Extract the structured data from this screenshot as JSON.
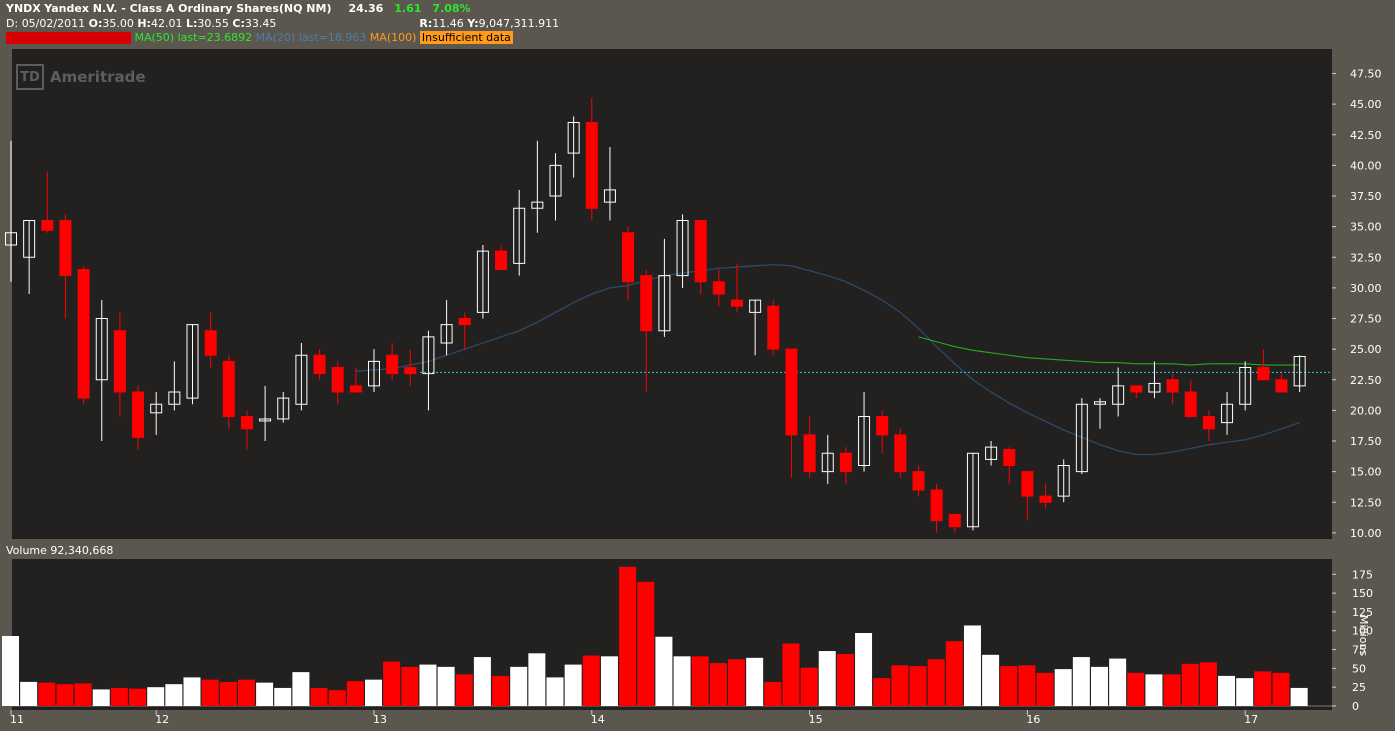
{
  "header": {
    "symbol": "YNDX",
    "name": "Yandex N.V. - Class A Ordinary Shares(NQ NM)",
    "last": "24.36",
    "change": "1.61",
    "change_pct": "7.08%",
    "date_label": "D:",
    "date": "05/02/2011",
    "open_label": "O:",
    "open": "35.00",
    "high_label": "H:",
    "high": "42.01",
    "low_label": "L:",
    "low": "30.55",
    "close_label": "C:",
    "close": "33.45",
    "range_label": "R:",
    "range": "11.46",
    "vol_label": "Y:",
    "volume": "9,047,311.911",
    "study1_label": "MA(50)",
    "study1_last": "last=23.6892",
    "study2_label": "MA(20)",
    "study2_last": "last=18.963",
    "study3_label": "MA(100)",
    "study3_note": "Insufficient data"
  },
  "logo": {
    "text": "Ameritrade",
    "mark": "TD"
  },
  "volume_panel": {
    "label": "Volume 92,340,668",
    "unit": "Millions"
  },
  "colors": {
    "up": "#ffffff",
    "down": "#ff0000",
    "ma50": "#22aa22",
    "ma20": "#2a4a6a",
    "lastline": "#35c7e0",
    "background": "#222120",
    "frame": "#5b574f"
  },
  "chart_data": {
    "type": "candlestick",
    "price_axis": {
      "ticks": [
        "10.00",
        "12.50",
        "15.00",
        "17.50",
        "20.00",
        "22.50",
        "25.00",
        "27.50",
        "30.00",
        "32.50",
        "35.00",
        "37.50",
        "40.00",
        "42.50",
        "45.00",
        "47.50"
      ],
      "range": [
        9.5,
        49.5
      ]
    },
    "volume_axis": {
      "ticks": [
        "0",
        "25",
        "50",
        "75",
        "100",
        "125",
        "150",
        "175"
      ],
      "range": [
        0,
        190
      ]
    },
    "x_labels": [
      "11",
      "12",
      "13",
      "14",
      "15",
      "16",
      "17"
    ],
    "x_label_index": [
      0,
      8,
      20,
      32,
      44,
      56,
      68
    ],
    "last_price_line": 23.1,
    "candles": [
      {
        "o": 33.5,
        "h": 42.0,
        "l": 30.5,
        "c": 34.5,
        "v": 93
      },
      {
        "o": 32.5,
        "h": 35.5,
        "l": 29.5,
        "c": 35.5,
        "v": 32
      },
      {
        "o": 35.5,
        "h": 39.5,
        "l": 34.5,
        "c": 34.7,
        "v": 31
      },
      {
        "o": 35.5,
        "h": 36.0,
        "l": 27.5,
        "c": 31.0,
        "v": 29
      },
      {
        "o": 31.5,
        "h": 31.8,
        "l": 20.5,
        "c": 21.0,
        "v": 30
      },
      {
        "o": 22.5,
        "h": 29.0,
        "l": 17.5,
        "c": 27.5,
        "v": 22
      },
      {
        "o": 26.5,
        "h": 28.0,
        "l": 19.5,
        "c": 21.5,
        "v": 24
      },
      {
        "o": 21.5,
        "h": 22.0,
        "l": 16.8,
        "c": 17.8,
        "v": 23
      },
      {
        "o": 19.8,
        "h": 21.5,
        "l": 18.0,
        "c": 20.5,
        "v": 25
      },
      {
        "o": 20.5,
        "h": 24.0,
        "l": 20.0,
        "c": 21.5,
        "v": 29
      },
      {
        "o": 21.0,
        "h": 27.0,
        "l": 20.5,
        "c": 27.0,
        "v": 38
      },
      {
        "o": 26.5,
        "h": 28.0,
        "l": 23.5,
        "c": 24.5,
        "v": 35
      },
      {
        "o": 24.0,
        "h": 24.5,
        "l": 18.5,
        "c": 19.5,
        "v": 32
      },
      {
        "o": 19.5,
        "h": 20.0,
        "l": 16.8,
        "c": 18.5,
        "v": 35
      },
      {
        "o": 19.3,
        "h": 22.0,
        "l": 17.5,
        "c": 19.3,
        "v": 31
      },
      {
        "o": 19.3,
        "h": 21.5,
        "l": 19.0,
        "c": 21.0,
        "v": 24
      },
      {
        "o": 20.5,
        "h": 25.5,
        "l": 20.0,
        "c": 24.5,
        "v": 45
      },
      {
        "o": 24.5,
        "h": 25.0,
        "l": 22.5,
        "c": 23.0,
        "v": 24
      },
      {
        "o": 23.5,
        "h": 24.0,
        "l": 20.5,
        "c": 21.5,
        "v": 21
      },
      {
        "o": 22.0,
        "h": 23.5,
        "l": 21.5,
        "c": 21.5,
        "v": 33
      },
      {
        "o": 22.0,
        "h": 25.0,
        "l": 21.5,
        "c": 24.0,
        "v": 35
      },
      {
        "o": 24.5,
        "h": 25.5,
        "l": 22.5,
        "c": 23.0,
        "v": 59
      },
      {
        "o": 23.5,
        "h": 25.0,
        "l": 22.0,
        "c": 23.0,
        "v": 52
      },
      {
        "o": 23.0,
        "h": 26.5,
        "l": 20.0,
        "c": 26.0,
        "v": 55
      },
      {
        "o": 25.5,
        "h": 29.0,
        "l": 24.5,
        "c": 27.0,
        "v": 52
      },
      {
        "o": 27.5,
        "h": 28.0,
        "l": 25.0,
        "c": 27.0,
        "v": 42
      },
      {
        "o": 28.0,
        "h": 33.5,
        "l": 27.5,
        "c": 33.0,
        "v": 65
      },
      {
        "o": 33.0,
        "h": 33.5,
        "l": 31.5,
        "c": 31.5,
        "v": 40
      },
      {
        "o": 32.0,
        "h": 38.0,
        "l": 31.0,
        "c": 36.5,
        "v": 52
      },
      {
        "o": 36.5,
        "h": 42.0,
        "l": 34.5,
        "c": 37.0,
        "v": 70
      },
      {
        "o": 37.5,
        "h": 41.0,
        "l": 35.5,
        "c": 40.0,
        "v": 38
      },
      {
        "o": 41.0,
        "h": 44.0,
        "l": 39.0,
        "c": 43.5,
        "v": 55
      },
      {
        "o": 43.5,
        "h": 45.5,
        "l": 35.5,
        "c": 36.5,
        "v": 67
      },
      {
        "o": 37.0,
        "h": 41.5,
        "l": 35.5,
        "c": 38.0,
        "v": 66
      },
      {
        "o": 34.5,
        "h": 35.0,
        "l": 29.0,
        "c": 30.5,
        "v": 185
      },
      {
        "o": 31.0,
        "h": 31.5,
        "l": 21.5,
        "c": 26.5,
        "v": 165
      },
      {
        "o": 26.5,
        "h": 34.0,
        "l": 26.0,
        "c": 31.0,
        "v": 92
      },
      {
        "o": 31.0,
        "h": 36.0,
        "l": 30.0,
        "c": 35.5,
        "v": 66
      },
      {
        "o": 35.5,
        "h": 35.5,
        "l": 29.5,
        "c": 30.5,
        "v": 66
      },
      {
        "o": 30.5,
        "h": 31.5,
        "l": 28.5,
        "c": 29.5,
        "v": 57
      },
      {
        "o": 29.0,
        "h": 32.0,
        "l": 28.0,
        "c": 28.5,
        "v": 62
      },
      {
        "o": 28.0,
        "h": 29.0,
        "l": 24.5,
        "c": 29.0,
        "v": 64
      },
      {
        "o": 28.5,
        "h": 29.0,
        "l": 24.5,
        "c": 25.0,
        "v": 32
      },
      {
        "o": 25.0,
        "h": 25.0,
        "l": 14.5,
        "c": 18.0,
        "v": 83
      },
      {
        "o": 18.0,
        "h": 19.5,
        "l": 14.5,
        "c": 15.0,
        "v": 51
      },
      {
        "o": 15.0,
        "h": 18.0,
        "l": 14.0,
        "c": 16.5,
        "v": 73
      },
      {
        "o": 16.5,
        "h": 17.0,
        "l": 14.0,
        "c": 15.0,
        "v": 69
      },
      {
        "o": 15.5,
        "h": 21.5,
        "l": 15.0,
        "c": 19.5,
        "v": 97
      },
      {
        "o": 19.5,
        "h": 20.0,
        "l": 16.5,
        "c": 18.0,
        "v": 37
      },
      {
        "o": 18.0,
        "h": 18.5,
        "l": 14.5,
        "c": 15.0,
        "v": 54
      },
      {
        "o": 15.0,
        "h": 15.5,
        "l": 13.0,
        "c": 13.5,
        "v": 53
      },
      {
        "o": 13.5,
        "h": 14.0,
        "l": 10.0,
        "c": 11.0,
        "v": 62
      },
      {
        "o": 11.5,
        "h": 11.5,
        "l": 10.0,
        "c": 10.5,
        "v": 86
      },
      {
        "o": 10.5,
        "h": 16.5,
        "l": 10.2,
        "c": 16.5,
        "v": 107
      },
      {
        "o": 16.0,
        "h": 17.5,
        "l": 15.5,
        "c": 17.0,
        "v": 68
      },
      {
        "o": 16.8,
        "h": 17.0,
        "l": 14.0,
        "c": 15.5,
        "v": 53
      },
      {
        "o": 15.0,
        "h": 15.0,
        "l": 11.0,
        "c": 13.0,
        "v": 54
      },
      {
        "o": 13.0,
        "h": 14.0,
        "l": 12.0,
        "c": 12.5,
        "v": 44
      },
      {
        "o": 13.0,
        "h": 16.0,
        "l": 12.5,
        "c": 15.5,
        "v": 49
      },
      {
        "o": 15.0,
        "h": 21.0,
        "l": 14.8,
        "c": 20.5,
        "v": 65
      },
      {
        "o": 20.5,
        "h": 21.0,
        "l": 18.5,
        "c": 20.7,
        "v": 52
      },
      {
        "o": 20.5,
        "h": 23.5,
        "l": 19.5,
        "c": 22.0,
        "v": 63
      },
      {
        "o": 22.0,
        "h": 22.0,
        "l": 21.0,
        "c": 21.5,
        "v": 44
      },
      {
        "o": 21.5,
        "h": 24.0,
        "l": 21.0,
        "c": 22.2,
        "v": 42
      },
      {
        "o": 22.5,
        "h": 23.0,
        "l": 20.5,
        "c": 21.5,
        "v": 42
      },
      {
        "o": 21.5,
        "h": 22.5,
        "l": 19.5,
        "c": 19.5,
        "v": 56
      },
      {
        "o": 19.5,
        "h": 20.0,
        "l": 17.5,
        "c": 18.5,
        "v": 58
      },
      {
        "o": 19.0,
        "h": 21.5,
        "l": 18.0,
        "c": 20.5,
        "v": 40
      },
      {
        "o": 20.5,
        "h": 24.0,
        "l": 20.0,
        "c": 23.5,
        "v": 37
      },
      {
        "o": 23.5,
        "h": 25.0,
        "l": 22.5,
        "c": 22.5,
        "v": 46
      },
      {
        "o": 22.5,
        "h": 23.0,
        "l": 21.5,
        "c": 21.5,
        "v": 44
      },
      {
        "o": 22.0,
        "h": 24.5,
        "l": 21.5,
        "c": 24.4,
        "v": 24
      }
    ],
    "ma20_start": 19,
    "ma20": [
      23.2,
      23.3,
      23.4,
      23.7,
      24.0,
      24.5,
      25.0,
      25.5,
      26.0,
      26.5,
      27.2,
      28.0,
      28.8,
      29.5,
      30.0,
      30.2,
      30.6,
      31.0,
      31.2,
      31.4,
      31.6,
      31.7,
      31.8,
      31.9,
      31.8,
      31.4,
      31.0,
      30.5,
      29.8,
      29.0,
      28.0,
      26.7,
      25.2,
      23.8,
      22.5,
      21.5,
      20.6,
      19.8,
      19.1,
      18.4,
      17.8,
      17.2,
      16.7,
      16.4,
      16.4,
      16.6,
      16.9,
      17.2,
      17.4,
      17.6,
      18.0,
      18.5,
      19.0
    ],
    "ma50_start": 50,
    "ma50": [
      26.0,
      25.6,
      25.2,
      24.9,
      24.7,
      24.5,
      24.3,
      24.2,
      24.1,
      24.0,
      23.9,
      23.9,
      23.8,
      23.8,
      23.8,
      23.7,
      23.8,
      23.8,
      23.8,
      23.7,
      23.7,
      23.7
    ]
  }
}
